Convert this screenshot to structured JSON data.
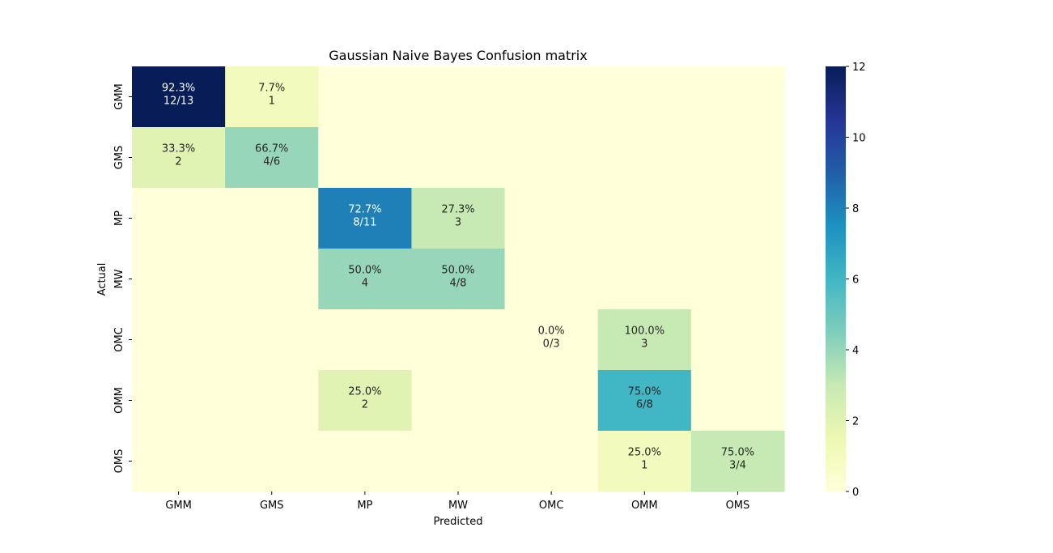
{
  "chart_data": {
    "type": "heatmap",
    "title": "Gaussian Naive Bayes Confusion matrix",
    "xlabel": "Predicted",
    "ylabel": "Actual",
    "x_categories": [
      "GMM",
      "GMS",
      "MP",
      "MW",
      "OMC",
      "OMM",
      "OMS"
    ],
    "y_categories": [
      "GMM",
      "GMS",
      "MP",
      "MW",
      "OMC",
      "OMM",
      "OMS"
    ],
    "values": [
      [
        12,
        1,
        0,
        0,
        0,
        0,
        0
      ],
      [
        2,
        4,
        0,
        0,
        0,
        0,
        0
      ],
      [
        0,
        0,
        8,
        3,
        0,
        0,
        0
      ],
      [
        0,
        0,
        4,
        4,
        0,
        0,
        0
      ],
      [
        0,
        0,
        0,
        0,
        0,
        3,
        0
      ],
      [
        0,
        0,
        2,
        0,
        0,
        6,
        0
      ],
      [
        0,
        0,
        0,
        0,
        0,
        1,
        3
      ]
    ],
    "annotations": [
      [
        "92.3%\n12/13",
        "7.7%\n1",
        "",
        "",
        "",
        "",
        ""
      ],
      [
        "33.3%\n2",
        "66.7%\n4/6",
        "",
        "",
        "",
        "",
        ""
      ],
      [
        "",
        "",
        "72.7%\n8/11",
        "27.3%\n3",
        "",
        "",
        ""
      ],
      [
        "",
        "",
        "50.0%\n4",
        "50.0%\n4/8",
        "",
        "",
        ""
      ],
      [
        "",
        "",
        "",
        "",
        "0.0%\n0/3",
        "100.0%\n3",
        ""
      ],
      [
        "",
        "",
        "25.0%\n2",
        "",
        "",
        "75.0%\n6/8",
        ""
      ],
      [
        "",
        "",
        "",
        "",
        "",
        "25.0%\n1",
        "75.0%\n3/4"
      ]
    ],
    "colorbar": {
      "colormap": "YlGnBu",
      "range": [
        0,
        12
      ],
      "ticks": [
        "0",
        "2",
        "4",
        "6",
        "8",
        "10",
        "12"
      ]
    },
    "grid": false
  }
}
